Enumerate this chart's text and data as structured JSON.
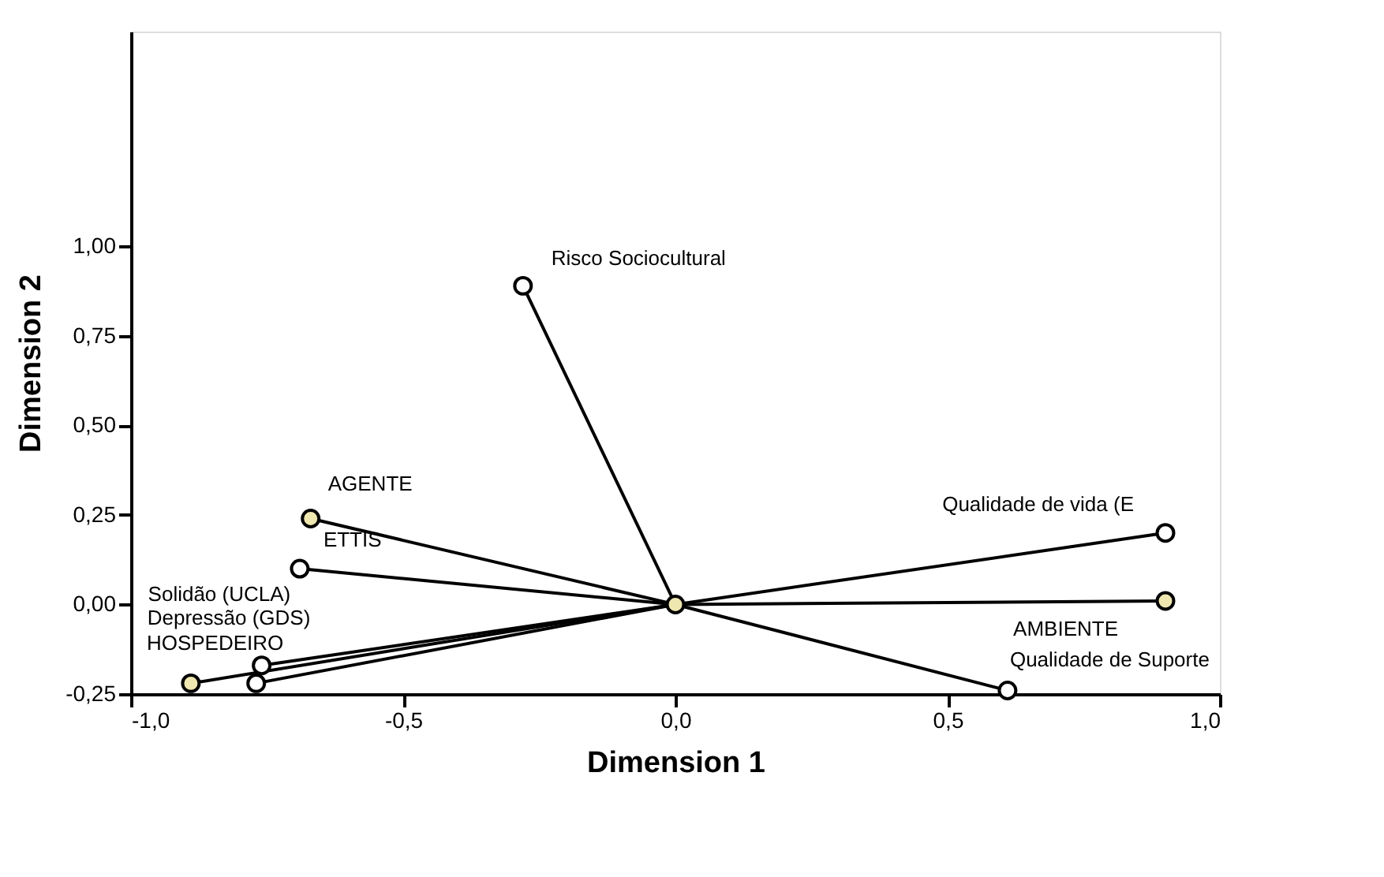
{
  "chart_data": {
    "type": "scatter",
    "xlabel": "Dimension 1",
    "ylabel": "Dimension 2",
    "xlim": [
      -1.0,
      1.0
    ],
    "ylim": [
      -0.25,
      1.6
    ],
    "xticks": [
      {
        "value": -1.0,
        "label": "-1,0"
      },
      {
        "value": -0.5,
        "label": "-0,5"
      },
      {
        "value": 0.0,
        "label": "0,0"
      },
      {
        "value": 0.5,
        "label": "0,5"
      },
      {
        "value": 1.0,
        "label": "1,0"
      }
    ],
    "yticks": [
      {
        "value": -0.25,
        "label": "-0,25"
      },
      {
        "value": 0.0,
        "label": "0,00"
      },
      {
        "value": 0.25,
        "label": "0,25"
      },
      {
        "value": 0.5,
        "label": "0,50"
      },
      {
        "value": 0.75,
        "label": "0,75"
      },
      {
        "value": 1.0,
        "label": "1,00"
      }
    ],
    "grid": false,
    "series": [
      {
        "type": "line",
        "marker": "none",
        "color": "#000000",
        "x": [
          0,
          -0.28
        ],
        "values": [
          0,
          0.89
        ]
      },
      {
        "type": "line",
        "marker": "none",
        "color": "#000000",
        "x": [
          0,
          -0.67
        ],
        "values": [
          0,
          0.24
        ]
      },
      {
        "type": "line",
        "marker": "none",
        "color": "#000000",
        "x": [
          0,
          -0.69
        ],
        "values": [
          0,
          0.1
        ]
      },
      {
        "type": "line",
        "marker": "none",
        "color": "#000000",
        "x": [
          0,
          0.9
        ],
        "values": [
          0,
          0.2
        ]
      },
      {
        "type": "line",
        "marker": "none",
        "color": "#000000",
        "x": [
          0,
          0.9
        ],
        "values": [
          0,
          0.01
        ]
      },
      {
        "type": "line",
        "marker": "none",
        "color": "#000000",
        "x": [
          0,
          0.61
        ],
        "values": [
          0,
          -0.24
        ]
      },
      {
        "type": "line",
        "marker": "none",
        "color": "#000000",
        "x": [
          0,
          -0.76
        ],
        "values": [
          0,
          -0.17
        ]
      },
      {
        "type": "line",
        "marker": "none",
        "color": "#000000",
        "x": [
          0,
          -0.89
        ],
        "values": [
          0,
          -0.22
        ]
      },
      {
        "type": "line",
        "marker": "none",
        "color": "#000000",
        "x": [
          0,
          -0.77
        ],
        "values": [
          0,
          -0.22
        ]
      },
      {
        "marker": "circle",
        "color": "#ffffff",
        "x": [
          -0.28,
          -0.69,
          0.9,
          0.61,
          -0.76,
          -0.77
        ],
        "values": [
          0.89,
          0.1,
          0.2,
          -0.24,
          -0.17,
          -0.22
        ]
      },
      {
        "marker": "circle",
        "color": "#efe7b0",
        "x": [
          0,
          -0.67,
          0.9,
          -0.89
        ],
        "values": [
          0,
          0.24,
          0.01,
          -0.22
        ]
      }
    ],
    "annotations": [
      {
        "text": "Risco Sociocultural",
        "x": -0.28,
        "y": 0.89
      },
      {
        "text": "AGENTE",
        "x": -0.67,
        "y": 0.24
      },
      {
        "text": "ETTIS",
        "x": -0.69,
        "y": 0.1
      },
      {
        "text": "Qualidade de vida (E",
        "x": 0.9,
        "y": 0.2
      },
      {
        "text": "AMBIENTE",
        "x": 0.9,
        "y": 0.01
      },
      {
        "text": "Qualidade de Suporte",
        "x": 0.61,
        "y": -0.24
      },
      {
        "text": "Solidão (UCLA)",
        "x": -0.76,
        "y": -0.17
      },
      {
        "text": "HOSPEDEIRO",
        "x": -0.89,
        "y": -0.22
      },
      {
        "text": "Depressão (GDS)",
        "x": -0.77,
        "y": -0.22
      }
    ]
  }
}
